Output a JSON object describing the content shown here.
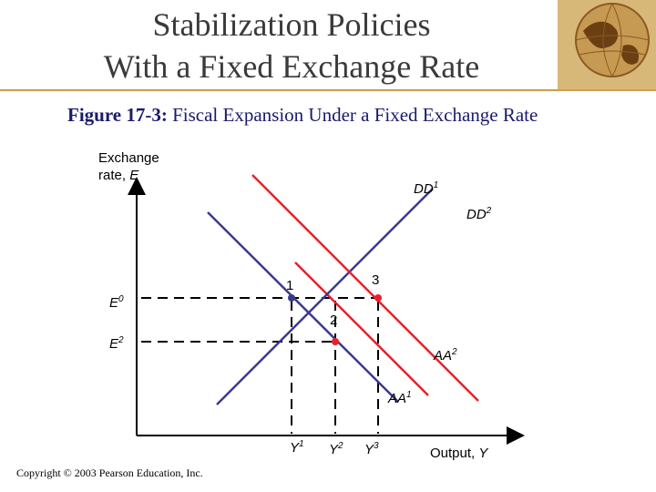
{
  "title": {
    "line1": "Stabilization Policies",
    "line2": "With a Fixed Exchange Rate"
  },
  "caption": {
    "prefix": "Figure 17-3:",
    "text": " Fiscal Expansion Under a Fixed Exchange Rate"
  },
  "diagram": {
    "y_axis_label_line1": "Exchange",
    "y_axis_label_line2_prefix": "rate, ",
    "y_axis_label_line2_var": "E",
    "x_axis_label_prefix": "Output, ",
    "x_axis_label_var": "Y",
    "curves": [
      {
        "name": "DD",
        "sup": "1",
        "color": "#e8202a"
      },
      {
        "name": "DD",
        "sup": "2",
        "color": "#e8202a"
      },
      {
        "name": "AA",
        "sup": "1",
        "color": "#3a3a8c"
      },
      {
        "name": "AA",
        "sup": "2",
        "color": "#e8202a"
      }
    ],
    "y_ticks": [
      {
        "name": "E",
        "sup": "0"
      },
      {
        "name": "E",
        "sup": "2"
      }
    ],
    "x_ticks": [
      {
        "name": "Y",
        "sup": "1"
      },
      {
        "name": "Y",
        "sup": "2"
      },
      {
        "name": "Y",
        "sup": "3"
      }
    ],
    "points": [
      "1",
      "2",
      "3"
    ]
  },
  "colors": {
    "initial_curve": "#3a3a8c",
    "shifted_curve": "#e8202a",
    "title_rule": "#c9a050",
    "caption_text": "#1a1a6e"
  },
  "icons": [
    "globe-icon"
  ],
  "copyright": "Copyright © 2003 Pearson Education, Inc."
}
